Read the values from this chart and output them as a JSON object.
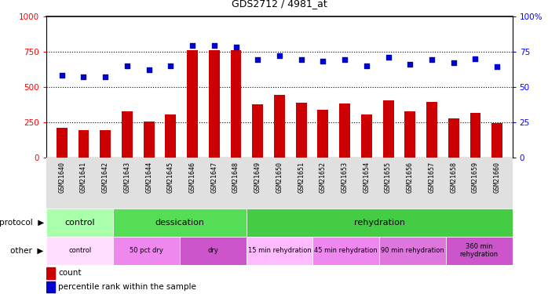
{
  "title": "GDS2712 / 4981_at",
  "samples": [
    "GSM21640",
    "GSM21641",
    "GSM21642",
    "GSM21643",
    "GSM21644",
    "GSM21645",
    "GSM21646",
    "GSM21647",
    "GSM21648",
    "GSM21649",
    "GSM21650",
    "GSM21651",
    "GSM21652",
    "GSM21653",
    "GSM21654",
    "GSM21655",
    "GSM21656",
    "GSM21657",
    "GSM21658",
    "GSM21659",
    "GSM21660"
  ],
  "counts": [
    210,
    195,
    195,
    325,
    255,
    305,
    760,
    760,
    760,
    375,
    440,
    385,
    335,
    380,
    305,
    405,
    325,
    390,
    275,
    315,
    245
  ],
  "percentiles": [
    58,
    57,
    57,
    65,
    62,
    65,
    79,
    79,
    78,
    69,
    72,
    69,
    68,
    69,
    65,
    71,
    66,
    69,
    67,
    70,
    64
  ],
  "ylim_left": [
    0,
    1000
  ],
  "ylim_right": [
    0,
    100
  ],
  "yticks_left": [
    0,
    250,
    500,
    750,
    1000
  ],
  "yticks_right": [
    0,
    25,
    50,
    75,
    100
  ],
  "bar_color": "#cc0000",
  "dot_color": "#0000cc",
  "protocol_labels": [
    {
      "label": "control",
      "start": 0,
      "end": 3,
      "color": "#aaffaa"
    },
    {
      "label": "dessication",
      "start": 3,
      "end": 9,
      "color": "#55dd55"
    },
    {
      "label": "rehydration",
      "start": 9,
      "end": 21,
      "color": "#44cc44"
    }
  ],
  "other_labels": [
    {
      "label": "control",
      "start": 0,
      "end": 3,
      "color": "#ffddff"
    },
    {
      "label": "50 pct dry",
      "start": 3,
      "end": 6,
      "color": "#ee88ee"
    },
    {
      "label": "dry",
      "start": 6,
      "end": 9,
      "color": "#cc55cc"
    },
    {
      "label": "15 min rehydration",
      "start": 9,
      "end": 12,
      "color": "#ffbbff"
    },
    {
      "label": "45 min rehydration",
      "start": 12,
      "end": 15,
      "color": "#ee88ee"
    },
    {
      "label": "90 min rehydration",
      "start": 15,
      "end": 18,
      "color": "#dd77dd"
    },
    {
      "label": "360 min\nrehydration",
      "start": 18,
      "end": 21,
      "color": "#cc55cc"
    }
  ]
}
